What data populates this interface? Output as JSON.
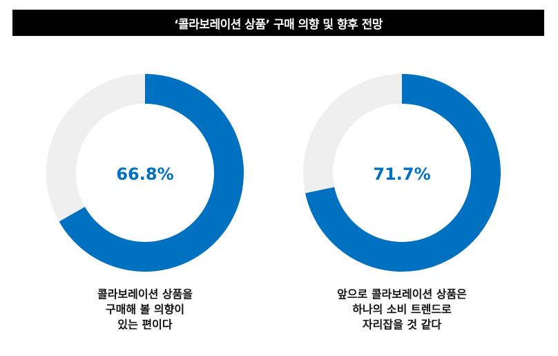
{
  "title": "‘콜라보레이션 상품’ 구매 의향 및 향후 전망",
  "colors": {
    "accent": "#0070C0",
    "track": "#EFEFEF",
    "title_bg": "#000000"
  },
  "chart_data": [
    {
      "type": "pie",
      "title": "",
      "slices": [
        {
          "label": "",
          "value": 66.8
        },
        {
          "label": "",
          "value": 33.2
        }
      ],
      "center_label": "66.8%",
      "caption_lines": [
        "콜라보레이션 상품을",
        "구매해 볼 의향이",
        "있는 편이다"
      ]
    },
    {
      "type": "pie",
      "title": "",
      "slices": [
        {
          "label": "",
          "value": 71.7
        },
        {
          "label": "",
          "value": 28.3
        }
      ],
      "center_label": "71.7%",
      "caption_lines": [
        "앞으로 콜라보레이션 상품은",
        "하나의 소비 트렌드로",
        "자리잡을 것 같다"
      ]
    }
  ]
}
